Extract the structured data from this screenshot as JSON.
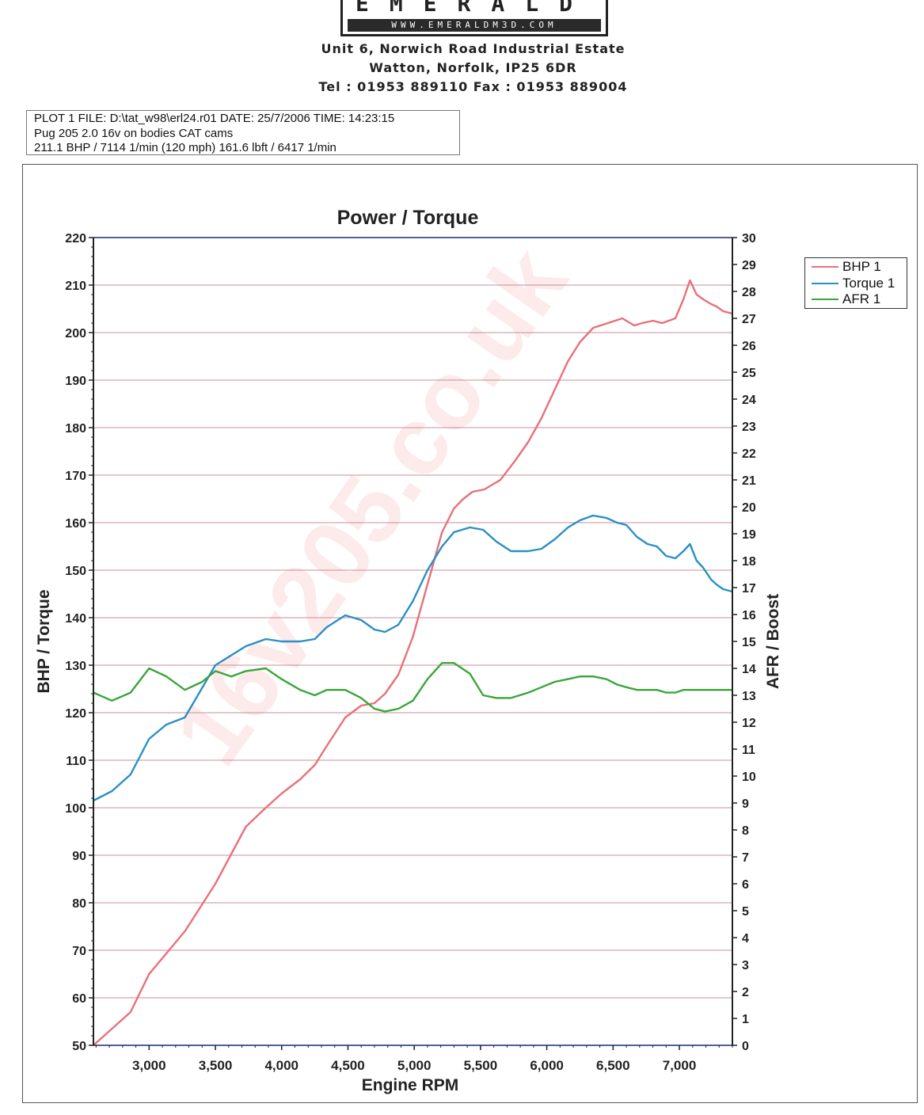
{
  "header": {
    "logo_word": "EMERALD",
    "logo_url": "WWW.EMERALDM3D.COM",
    "address_line1": "Unit 6, Norwich Road Industrial Estate",
    "address_line2": "Watton, Norfolk, IP25 6DR",
    "contact_line": "Tel : 01953 889110    Fax : 01953 889004"
  },
  "plot_info": {
    "line1": "PLOT 1 FILE: D:\\tat_w98\\erl24.r01  DATE: 25/7/2006  TIME: 14:23:15",
    "line2": "Pug 205 2.0 16v on bodies CAT cams",
    "line3": "211.1 BHP / 7114 1/min (120 mph)    161.6 lbft / 6417 1/min"
  },
  "watermark": "16v205.co.uk",
  "colors": {
    "bhp": "#e8707a",
    "torque": "#2a8fc4",
    "afr": "#3aa63a",
    "gridline": "#c88f98"
  },
  "chart_data": {
    "type": "line",
    "title": "Power / Torque",
    "xlabel": "Engine RPM",
    "ylabel": "BHP / Torque",
    "y2label": "AFR / Boost",
    "xlim": [
      2580,
      7400
    ],
    "ylim": [
      50,
      220
    ],
    "y2lim": [
      0,
      30
    ],
    "xticks": [
      3000,
      3500,
      4000,
      4500,
      5000,
      5500,
      6000,
      6500,
      7000
    ],
    "xtick_labels": [
      "3,000",
      "3,500",
      "4,000",
      "4,500",
      "5,000",
      "5,500",
      "6,000",
      "6,500",
      "7,000"
    ],
    "yticks": [
      50,
      60,
      70,
      80,
      90,
      100,
      110,
      120,
      130,
      140,
      150,
      160,
      170,
      180,
      190,
      200,
      210,
      220
    ],
    "y2ticks": [
      0,
      1,
      2,
      3,
      4,
      5,
      6,
      7,
      8,
      9,
      10,
      11,
      12,
      13,
      14,
      15,
      16,
      17,
      18,
      19,
      20,
      21,
      22,
      23,
      24,
      25,
      26,
      27,
      28,
      29,
      30
    ],
    "grid": true,
    "legend": "right",
    "series": [
      {
        "name": "BHP 1",
        "axis": "left",
        "color": "#e8707a",
        "x": [
          2580,
          2860,
          3000,
          3270,
          3500,
          3730,
          3880,
          4000,
          4140,
          4250,
          4340,
          4480,
          4600,
          4700,
          4780,
          4880,
          4990,
          5100,
          5210,
          5300,
          5370,
          5440,
          5530,
          5650,
          5760,
          5860,
          5960,
          6060,
          6160,
          6250,
          6350,
          6460,
          6570,
          6660,
          6720,
          6800,
          6870,
          6920,
          6970,
          7030,
          7080,
          7130,
          7180,
          7240,
          7280,
          7330,
          7400
        ],
        "y": [
          50,
          57,
          65,
          74,
          84,
          96,
          100,
          103,
          106,
          109,
          113,
          119,
          121.5,
          122,
          124,
          128,
          136,
          147,
          158,
          163,
          165,
          166.5,
          167,
          169,
          173,
          177,
          182,
          188,
          194,
          198,
          201,
          202,
          203,
          201.5,
          202,
          202.5,
          202,
          202.5,
          203,
          207,
          211,
          208,
          207,
          206,
          205.5,
          204.5,
          204
        ]
      },
      {
        "name": "Torque 1",
        "axis": "left",
        "color": "#2a8fc4",
        "x": [
          2580,
          2720,
          2860,
          3000,
          3130,
          3270,
          3500,
          3730,
          3880,
          4000,
          4140,
          4250,
          4340,
          4480,
          4600,
          4700,
          4780,
          4880,
          4990,
          5100,
          5210,
          5300,
          5420,
          5520,
          5620,
          5730,
          5860,
          5960,
          6060,
          6160,
          6250,
          6350,
          6450,
          6530,
          6600,
          6680,
          6760,
          6830,
          6900,
          6970,
          7030,
          7080,
          7130,
          7180,
          7240,
          7280,
          7330,
          7400
        ],
        "y": [
          101.5,
          103.5,
          107,
          114.5,
          117.5,
          119,
          130,
          134,
          135.5,
          135,
          135,
          135.5,
          138,
          140.5,
          139.5,
          137.5,
          137,
          138.5,
          143.5,
          150,
          155,
          158,
          159,
          158.5,
          156,
          154,
          154,
          154.5,
          156.5,
          159,
          160.5,
          161.5,
          161,
          160,
          159.5,
          157,
          155.5,
          155,
          153,
          152.5,
          154,
          155.5,
          152,
          150.5,
          148,
          147,
          146,
          145.5
        ]
      },
      {
        "name": "AFR 1",
        "axis": "right",
        "color": "#3aa63a",
        "x": [
          2580,
          2720,
          2860,
          3000,
          3130,
          3270,
          3400,
          3500,
          3620,
          3730,
          3880,
          4000,
          4140,
          4250,
          4340,
          4480,
          4600,
          4700,
          4780,
          4880,
          4990,
          5100,
          5210,
          5300,
          5420,
          5520,
          5620,
          5730,
          5860,
          5960,
          6060,
          6160,
          6250,
          6350,
          6450,
          6530,
          6600,
          6680,
          6760,
          6830,
          6900,
          6970,
          7030,
          7080,
          7130,
          7180,
          7240,
          7280,
          7330,
          7400
        ],
        "y": [
          13.1,
          12.8,
          13.1,
          14,
          13.7,
          13.2,
          13.5,
          13.9,
          13.7,
          13.9,
          14,
          13.6,
          13.2,
          13,
          13.2,
          13.2,
          12.9,
          12.5,
          12.4,
          12.5,
          12.8,
          13.6,
          14.2,
          14.2,
          13.8,
          13,
          12.9,
          12.9,
          13.1,
          13.3,
          13.5,
          13.6,
          13.7,
          13.7,
          13.6,
          13.4,
          13.3,
          13.2,
          13.2,
          13.2,
          13.1,
          13.1,
          13.2,
          13.2,
          13.2,
          13.2,
          13.2,
          13.2,
          13.2,
          13.2
        ]
      }
    ]
  }
}
